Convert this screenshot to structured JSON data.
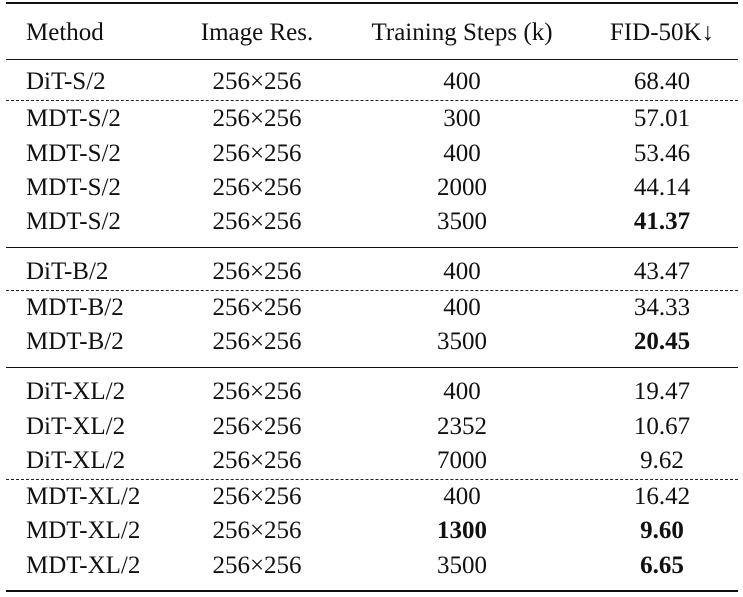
{
  "headers": {
    "method": "Method",
    "resolution": "Image Res.",
    "steps": "Training Steps (k)",
    "fid": "FID-50K↓"
  },
  "rows": [
    {
      "method": "DiT-S/2",
      "resolution": "256×256",
      "steps": "400",
      "fid": "68.40"
    },
    {
      "method": "MDT-S/2",
      "resolution": "256×256",
      "steps": "300",
      "fid": "57.01"
    },
    {
      "method": "MDT-S/2",
      "resolution": "256×256",
      "steps": "400",
      "fid": "53.46"
    },
    {
      "method": "MDT-S/2",
      "resolution": "256×256",
      "steps": "2000",
      "fid": "44.14"
    },
    {
      "method": "MDT-S/2",
      "resolution": "256×256",
      "steps": "3500",
      "fid": "41.37"
    },
    {
      "method": "DiT-B/2",
      "resolution": "256×256",
      "steps": "400",
      "fid": "43.47"
    },
    {
      "method": "MDT-B/2",
      "resolution": "256×256",
      "steps": "400",
      "fid": "34.33"
    },
    {
      "method": "MDT-B/2",
      "resolution": "256×256",
      "steps": "3500",
      "fid": "20.45"
    },
    {
      "method": "DiT-XL/2",
      "resolution": "256×256",
      "steps": "400",
      "fid": "19.47"
    },
    {
      "method": "DiT-XL/2",
      "resolution": "256×256",
      "steps": "2352",
      "fid": "10.67"
    },
    {
      "method": "DiT-XL/2",
      "resolution": "256×256",
      "steps": "7000",
      "fid": "9.62"
    },
    {
      "method": "MDT-XL/2",
      "resolution": "256×256",
      "steps": "400",
      "fid": "16.42"
    },
    {
      "method": "MDT-XL/2",
      "resolution": "256×256",
      "steps": "1300",
      "fid": "9.60"
    },
    {
      "method": "MDT-XL/2",
      "resolution": "256×256",
      "steps": "3500",
      "fid": "6.65"
    }
  ],
  "bold_cells": [
    {
      "row": 4,
      "col": "fid"
    },
    {
      "row": 7,
      "col": "fid"
    },
    {
      "row": 12,
      "col": "steps"
    },
    {
      "row": 12,
      "col": "fid"
    },
    {
      "row": 13,
      "col": "fid"
    }
  ]
}
